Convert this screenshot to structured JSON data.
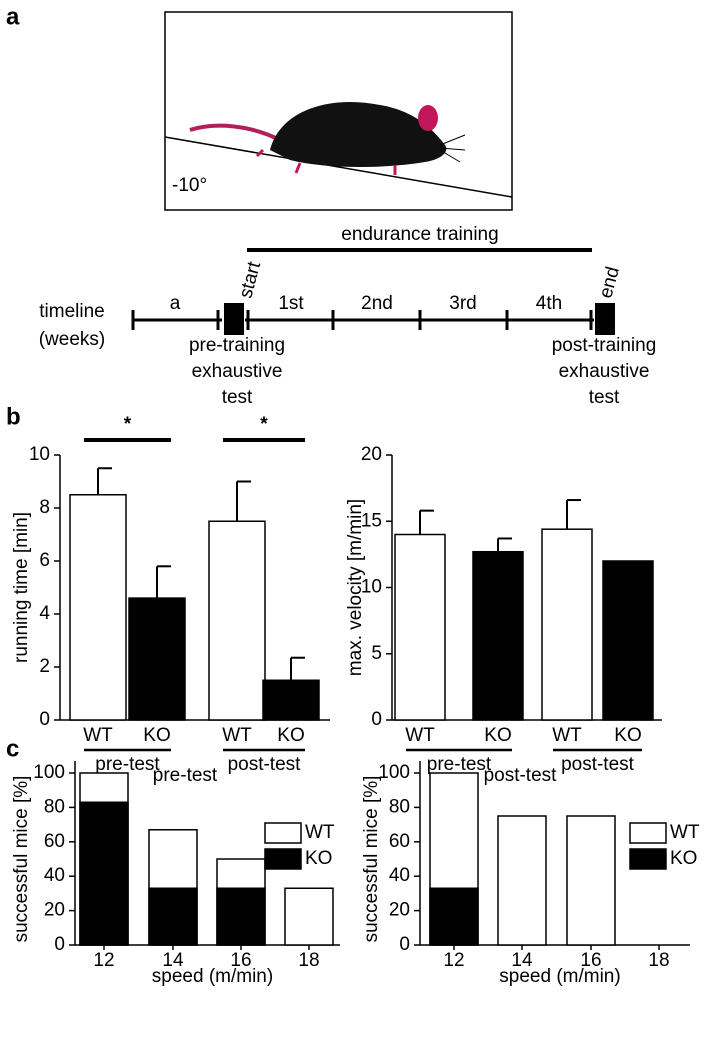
{
  "panels": [
    "a",
    "b",
    "c"
  ],
  "diagram": {
    "angle": "-10°",
    "bracket": "endurance training",
    "timeline_label": [
      "timeline",
      "(weeks)"
    ],
    "steps": [
      "a",
      "start",
      "1st",
      "2nd",
      "3rd",
      "4th",
      "end"
    ],
    "pre_test": [
      "pre-training",
      "exhaustive",
      "test"
    ],
    "post_test": [
      "post-training",
      "exhaustive",
      "test"
    ]
  },
  "chart_data": [
    {
      "type": "bar",
      "ylabel": "running time [min]",
      "categories": [
        "WT",
        "KO",
        "WT",
        "KO"
      ],
      "values": [
        8.5,
        4.6,
        7.5,
        1.5
      ],
      "errors": [
        1.0,
        1.2,
        1.5,
        0.85
      ],
      "colors": [
        "#ffffff",
        "#000000",
        "#ffffff",
        "#000000"
      ],
      "group_labels": [
        "pre-test",
        "post-test"
      ],
      "annotations": [
        "*",
        "*"
      ],
      "ylim": [
        0,
        10
      ],
      "yticks": [
        0,
        2,
        4,
        6,
        8,
        10
      ]
    },
    {
      "type": "bar",
      "ylabel": "max. velocity [m/min]",
      "categories": [
        "WT",
        "KO",
        "WT",
        "KO"
      ],
      "values": [
        14,
        12.7,
        14.4,
        12.0
      ],
      "errors": [
        1.8,
        1.0,
        2.2,
        null
      ],
      "colors": [
        "#ffffff",
        "#000000",
        "#ffffff",
        "#000000"
      ],
      "group_labels": [
        "pre-test",
        "post-test"
      ],
      "ylim": [
        0,
        20
      ],
      "yticks": [
        0,
        5,
        10,
        15,
        20
      ]
    },
    {
      "type": "bar",
      "barmode": "overlay",
      "title": "pre-test",
      "xlabel": "speed (m/min)",
      "ylabel": "successful mice [%]",
      "categories": [
        "12",
        "14",
        "16",
        "18"
      ],
      "series": [
        {
          "name": "WT",
          "color": "#ffffff",
          "values": [
            100,
            67,
            50,
            33
          ]
        },
        {
          "name": "KO",
          "color": "#000000",
          "values": [
            83,
            33,
            33,
            0
          ]
        }
      ],
      "legend": "upper right",
      "ylim": [
        0,
        100
      ],
      "yticks": [
        0,
        20,
        40,
        60,
        80,
        100
      ]
    },
    {
      "type": "bar",
      "barmode": "overlay",
      "title": "post-test",
      "xlabel": "speed (m/min)",
      "ylabel": "successful mice [%]",
      "categories": [
        "12",
        "14",
        "16",
        "18"
      ],
      "series": [
        {
          "name": "WT",
          "color": "#ffffff",
          "values": [
            100,
            75,
            75,
            0
          ]
        },
        {
          "name": "KO",
          "color": "#000000",
          "values": [
            33,
            0,
            0,
            0
          ]
        }
      ],
      "legend": "upper right",
      "ylim": [
        0,
        100
      ],
      "yticks": [
        0,
        20,
        40,
        60,
        80,
        100
      ]
    }
  ]
}
